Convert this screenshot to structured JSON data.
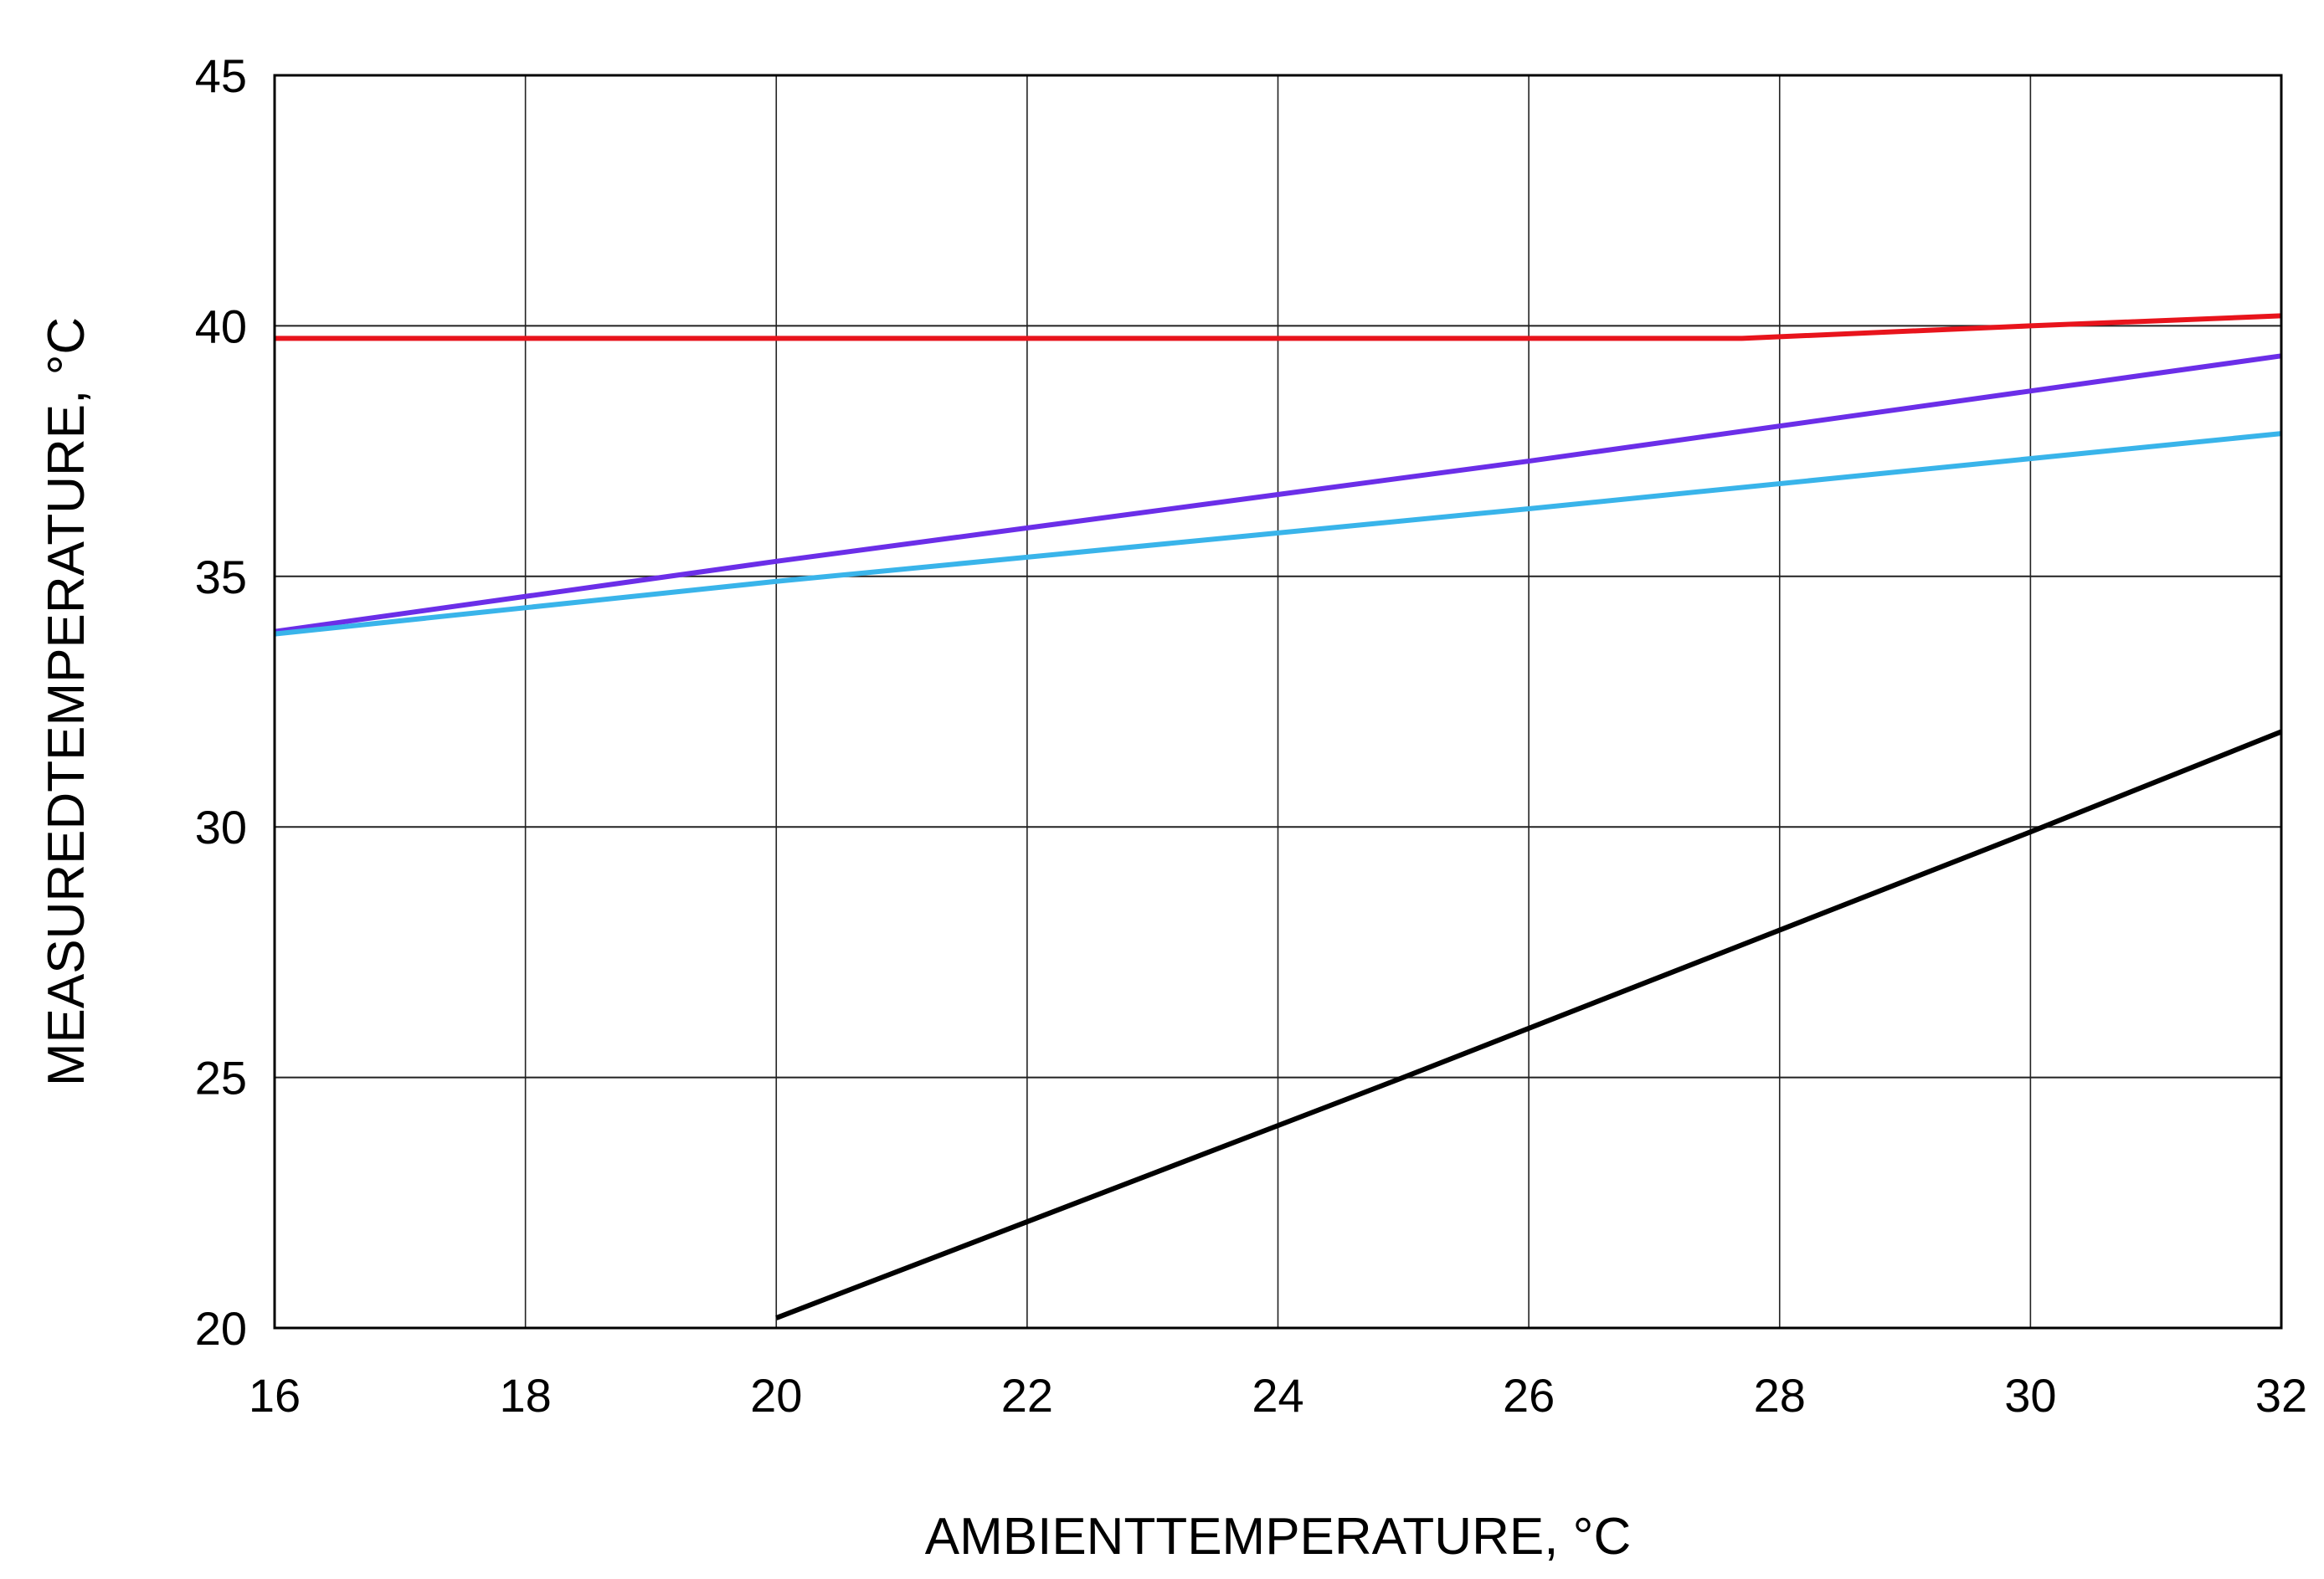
{
  "chart_data": {
    "type": "line",
    "title": "",
    "xlabel": "AMBIENTTEMPERATURE, °C",
    "ylabel": "MEASUREDTEMPERATURE, °C",
    "xlim": [
      16,
      32
    ],
    "ylim": [
      20,
      45
    ],
    "xticks": [
      16,
      18,
      20,
      22,
      24,
      26,
      28,
      30,
      32
    ],
    "yticks": [
      20,
      25,
      30,
      35,
      40,
      45
    ],
    "grid": true,
    "legend": "none",
    "series": [
      {
        "color": "#e8141c",
        "points": [
          [
            16,
            39.75
          ],
          [
            27.7,
            39.75
          ],
          [
            30,
            40.0
          ],
          [
            32,
            40.2
          ]
        ]
      },
      {
        "color": "#6b2ee8",
        "points": [
          [
            16,
            33.9
          ],
          [
            20,
            35.3
          ],
          [
            26,
            37.3
          ],
          [
            32,
            39.4
          ]
        ]
      },
      {
        "color": "#39b4ea",
        "points": [
          [
            16,
            33.85
          ],
          [
            20,
            34.9
          ],
          [
            26,
            36.35
          ],
          [
            32,
            37.85
          ]
        ]
      },
      {
        "color": "#000000",
        "points": [
          [
            20,
            20.2
          ],
          [
            25,
            25.0
          ],
          [
            30,
            29.9
          ],
          [
            32,
            31.9
          ]
        ]
      }
    ]
  }
}
